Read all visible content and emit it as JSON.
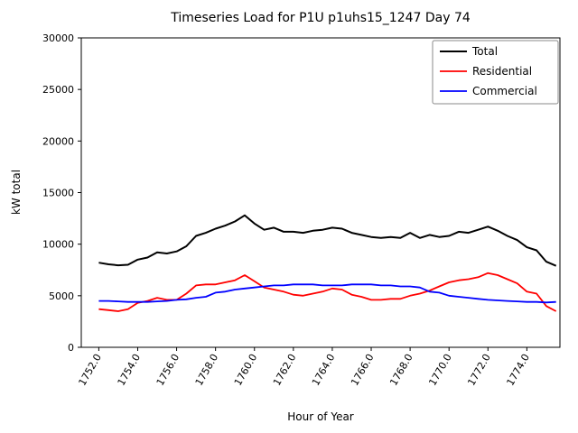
{
  "chart_data": {
    "type": "line",
    "title": "Timeseries Load for P1U p1uhs15_1247  Day 74",
    "xlabel": "Hour of Year",
    "ylabel": "kW total",
    "xlim": [
      1751.1,
      1775.7
    ],
    "ylim": [
      0,
      30000
    ],
    "grid": false,
    "legend_position": "upper right",
    "x_ticks": [
      1752,
      1754,
      1756,
      1758,
      1760,
      1762,
      1764,
      1766,
      1768,
      1770,
      1772,
      1774
    ],
    "x_tick_labels": [
      "1752.0",
      "1754.0",
      "1756.0",
      "1758.0",
      "1760.0",
      "1762.0",
      "1764.0",
      "1766.0",
      "1768.0",
      "1770.0",
      "1772.0",
      "1774.0"
    ],
    "y_ticks": [
      0,
      5000,
      10000,
      15000,
      20000,
      25000,
      30000
    ],
    "y_tick_labels": [
      "0",
      "5000",
      "10000",
      "15000",
      "20000",
      "25000",
      "30000"
    ],
    "x": [
      1752.0,
      1752.5,
      1753.0,
      1753.5,
      1754.0,
      1754.5,
      1755.0,
      1755.5,
      1756.0,
      1756.5,
      1757.0,
      1757.5,
      1758.0,
      1758.5,
      1759.0,
      1759.5,
      1760.0,
      1760.5,
      1761.0,
      1761.5,
      1762.0,
      1762.5,
      1763.0,
      1763.5,
      1764.0,
      1764.5,
      1765.0,
      1765.5,
      1766.0,
      1766.5,
      1767.0,
      1767.5,
      1768.0,
      1768.5,
      1769.0,
      1769.5,
      1770.0,
      1770.5,
      1771.0,
      1771.5,
      1772.0,
      1772.5,
      1773.0,
      1773.5,
      1774.0,
      1774.5,
      1775.0,
      1775.5
    ],
    "series": [
      {
        "name": "Total",
        "color": "#000000",
        "line_width": 2.0,
        "values": [
          8200,
          8050,
          7950,
          8000,
          8500,
          8700,
          9200,
          9100,
          9300,
          9800,
          10800,
          11100,
          11500,
          11800,
          12200,
          12800,
          12000,
          11400,
          11600,
          11200,
          11200,
          11100,
          11300,
          11400,
          11600,
          11500,
          11100,
          10900,
          10700,
          10600,
          10700,
          10600,
          11100,
          10600,
          10900,
          10700,
          10800,
          11200,
          11100,
          11400,
          11700,
          11300,
          10800,
          10400,
          9700,
          9400,
          8300,
          7900
        ]
      },
      {
        "name": "Residential",
        "color": "#ff0000",
        "line_width": 1.8,
        "values": [
          3700,
          3600,
          3500,
          3700,
          4300,
          4500,
          4800,
          4600,
          4600,
          5200,
          6000,
          6100,
          6100,
          6300,
          6500,
          7000,
          6400,
          5800,
          5600,
          5400,
          5100,
          5000,
          5200,
          5400,
          5700,
          5600,
          5100,
          4900,
          4600,
          4600,
          4700,
          4700,
          5000,
          5200,
          5500,
          5900,
          6300,
          6500,
          6600,
          6800,
          7200,
          7000,
          6600,
          6200,
          5400,
          5200,
          4000,
          3500
        ]
      },
      {
        "name": "Commercial",
        "color": "#0000ff",
        "line_width": 1.8,
        "values": [
          4500,
          4500,
          4450,
          4400,
          4400,
          4400,
          4450,
          4500,
          4600,
          4650,
          4800,
          4900,
          5300,
          5400,
          5600,
          5700,
          5800,
          5900,
          6000,
          6000,
          6100,
          6100,
          6100,
          6000,
          6000,
          6000,
          6100,
          6100,
          6100,
          6000,
          6000,
          5900,
          5900,
          5800,
          5400,
          5300,
          5000,
          4900,
          4800,
          4700,
          4600,
          4550,
          4500,
          4450,
          4400,
          4400,
          4350,
          4400
        ]
      }
    ]
  }
}
